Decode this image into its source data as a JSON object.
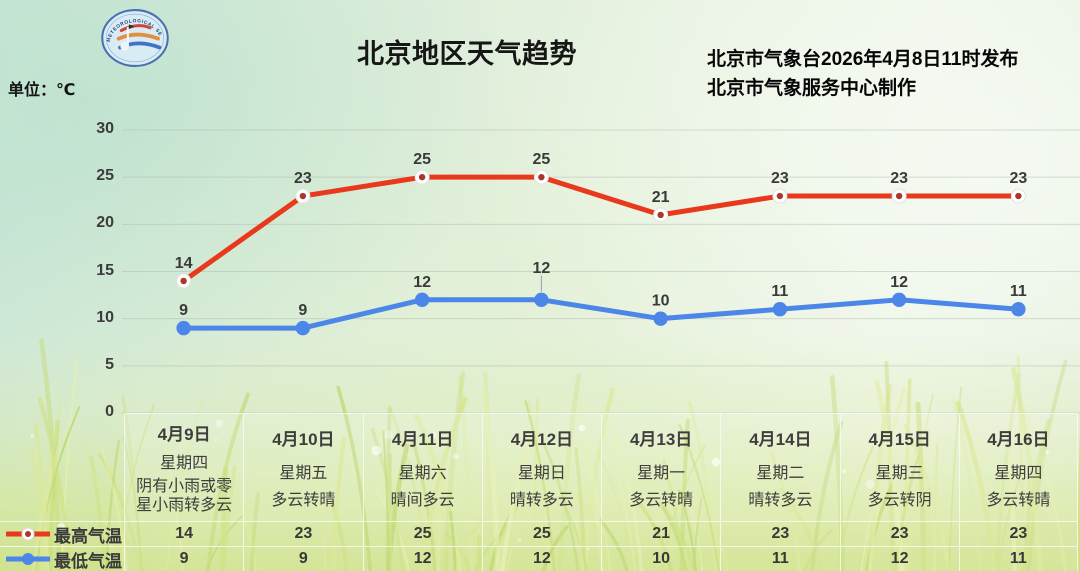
{
  "header": {
    "title": "北京地区天气趋势",
    "issued_by": "北京市气象台2026年4月8日11时发布",
    "produced_by": "北京市气象服务中心制作",
    "unit_label": "单位：℃",
    "logo_alt": "北京市气象服务中心 BEIJING METEOROLOGICAL SERVICE"
  },
  "chart_data": {
    "type": "line",
    "title": "北京地区天气趋势",
    "xlabel": "",
    "ylabel": "℃",
    "ylim": [
      0,
      30
    ],
    "yticks": [
      0,
      5,
      10,
      15,
      20,
      25,
      30
    ],
    "grid": true,
    "legend_position": "bottom-left",
    "categories": [
      "4月9日",
      "4月10日",
      "4月11日",
      "4月12日",
      "4月13日",
      "4月14日",
      "4月15日",
      "4月16日"
    ],
    "weekdays": [
      "星期四",
      "星期五",
      "星期六",
      "星期日",
      "星期一",
      "星期二",
      "星期三",
      "星期四"
    ],
    "weather": [
      "阴有小雨或零星小雨转多云",
      "多云转晴",
      "晴间多云",
      "晴转多云",
      "多云转晴",
      "晴转多云",
      "多云转阴",
      "多云转晴"
    ],
    "series": [
      {
        "name": "最高气温",
        "color": "#e8391d",
        "marker": "open-circle",
        "marker_center": "#a5392c",
        "values": [
          14,
          23,
          25,
          25,
          21,
          23,
          23,
          23
        ],
        "leader_line_points": []
      },
      {
        "name": "最低气温",
        "color": "#4c86e8",
        "marker": "solid-circle",
        "values": [
          9,
          9,
          12,
          12,
          10,
          11,
          12,
          11
        ],
        "leader_line_points": [
          3
        ]
      }
    ]
  }
}
